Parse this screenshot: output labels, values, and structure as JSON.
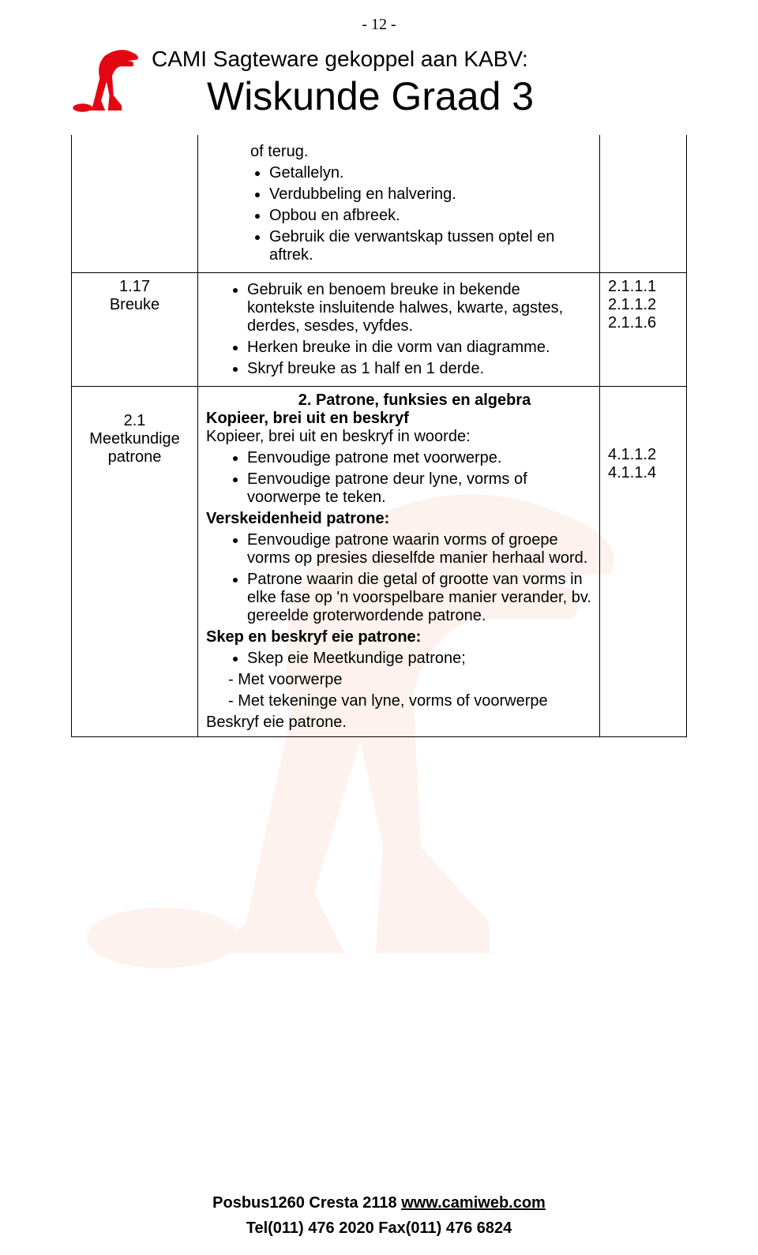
{
  "page_number": "- 12 -",
  "header": {
    "subtitle": "CAMI Sagteware gekoppel aan KABV:",
    "maintitle": "Wiskunde Graad 3",
    "logo_color": "#e30613"
  },
  "watermark_color": "#f7bfa8",
  "rows": [
    {
      "c1": "",
      "c2": {
        "bullets": [
          "of terug.",
          "Getallelyn.",
          "Verdubbeling en halvering.",
          "Opbou en afbreek.",
          "Gebruik die verwantskap tussen optel en aftrek."
        ]
      },
      "c3": ""
    },
    {
      "c1_num": "1.17",
      "c1_label": "Breuke",
      "c2": {
        "bullets": [
          "Gebruik en benoem breuke in bekende kontekste insluitende halwes, kwarte, agstes, derdes, sesdes, vyfdes.",
          "Herken breuke in die vorm van diagramme.",
          "Skryf breuke as 1 half en 1 derde."
        ]
      },
      "c3_lines": [
        "2.1.1.1",
        "2.1.1.2",
        "2.1.1.6"
      ]
    },
    {
      "c1_num": "2.1",
      "c1_label": "Meetkundige patrone",
      "c2": {
        "section_head": "2.  Patrone, funksies en algebra",
        "blocks": [
          {
            "bold_lead": "Kopieer, brei uit en beskryf"
          },
          {
            "text": "Kopieer, brei uit en beskryf in woorde:"
          },
          {
            "bullets": [
              "Eenvoudige patrone met voorwerpe.",
              "Eenvoudige patrone deur lyne, vorms of voorwerpe te teken."
            ]
          },
          {
            "bold_lead": "Verskeidenheid patrone:"
          },
          {
            "bullets": [
              "Eenvoudige patrone waarin vorms of groepe vorms op presies dieselfde manier herhaal word.",
              "Patrone waarin die getal of grootte van vorms in elke fase op 'n voorspelbare manier verander, bv. gereelde groterwordende patrone."
            ]
          },
          {
            "bold_lead": "Skep en beskryf eie patrone:"
          },
          {
            "bullets": [
              "Skep eie Meetkundige patrone;"
            ]
          },
          {
            "dashes": [
              "Met voorwerpe",
              "Met tekeninge van lyne, vorms of voorwerpe"
            ]
          },
          {
            "text": "Beskryf eie patrone."
          }
        ]
      },
      "c3_lines": [
        "",
        "",
        "",
        "4.1.1.2",
        "4.1.1.4"
      ]
    }
  ],
  "footer": {
    "line1_a": "Posbus1260 Cresta 2118  ",
    "line1_b": "www.camiweb.com",
    "line2": "Tel(011) 476 2020  Fax(011) 476 6824"
  }
}
